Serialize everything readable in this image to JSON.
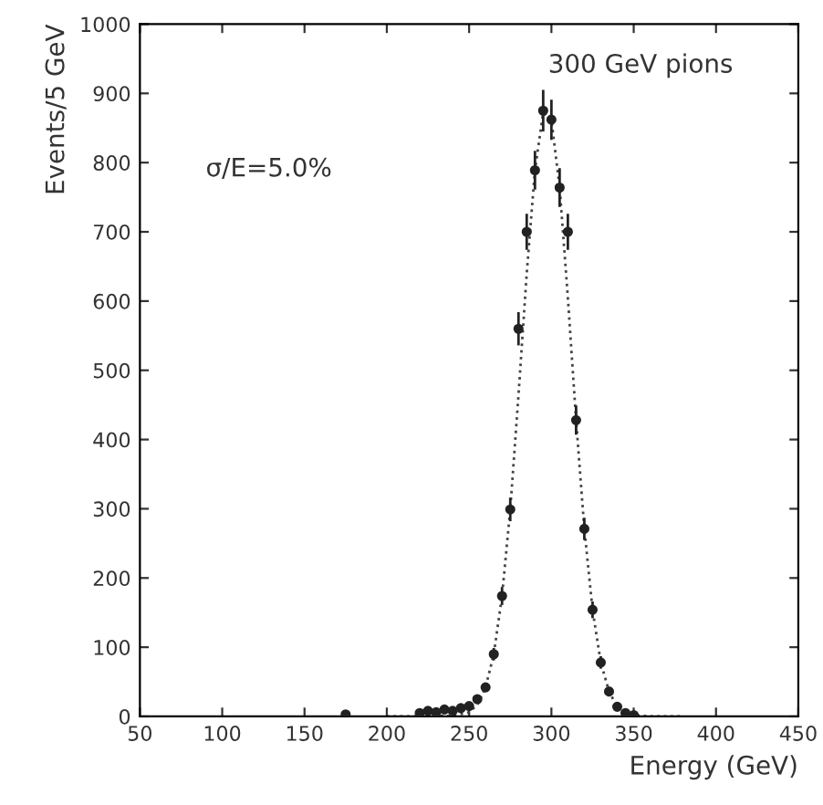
{
  "chart_data": {
    "type": "scatter",
    "xlabel": "Energy (GeV)",
    "ylabel": "Events/5 GeV",
    "annotations": [
      "300 GeV pions",
      "σ/E=5.0%"
    ],
    "xlim": [
      50,
      450
    ],
    "ylim": [
      0,
      1000
    ],
    "xticks": [
      50,
      100,
      150,
      200,
      250,
      300,
      350,
      400,
      450
    ],
    "yticks": [
      0,
      100,
      200,
      300,
      400,
      500,
      600,
      700,
      800,
      900,
      1000
    ],
    "grid": false,
    "legend": false,
    "series": [
      {
        "color": "#222222",
        "marker": "circle",
        "x": [
          175,
          220,
          225,
          230,
          235,
          240,
          245,
          250,
          255,
          260,
          265,
          270,
          275,
          280,
          285,
          290,
          295,
          300,
          305,
          310,
          315,
          320,
          325,
          330,
          335,
          340,
          345,
          350
        ],
        "values": [
          3,
          5,
          8,
          6,
          10,
          8,
          12,
          15,
          25,
          42,
          90,
          174,
          299,
          560,
          700,
          789,
          875,
          862,
          764,
          700,
          428,
          271,
          154,
          78,
          36,
          14,
          5,
          2
        ],
        "errors": [
          2,
          2,
          3,
          2,
          3,
          3,
          3,
          4,
          5,
          6,
          9,
          13,
          17,
          24,
          26,
          28,
          30,
          29,
          28,
          26,
          21,
          16,
          12,
          9,
          6,
          4,
          2,
          1
        ]
      },
      {
        "type": "line",
        "color": "#444444",
        "line_style": "dotted",
        "x": [
          200,
          220,
          240,
          250,
          255,
          260,
          265,
          270,
          275,
          280,
          285,
          290,
          295,
          300,
          305,
          310,
          315,
          320,
          325,
          330,
          335,
          340,
          345,
          350,
          360,
          380
        ],
        "values": [
          0,
          0,
          1,
          6,
          17,
          42,
          90,
          174,
          299,
          464,
          640,
          789,
          872,
          862,
          764,
          605,
          428,
          271,
          154,
          78,
          36,
          14,
          5,
          2,
          0,
          0
        ]
      }
    ]
  }
}
